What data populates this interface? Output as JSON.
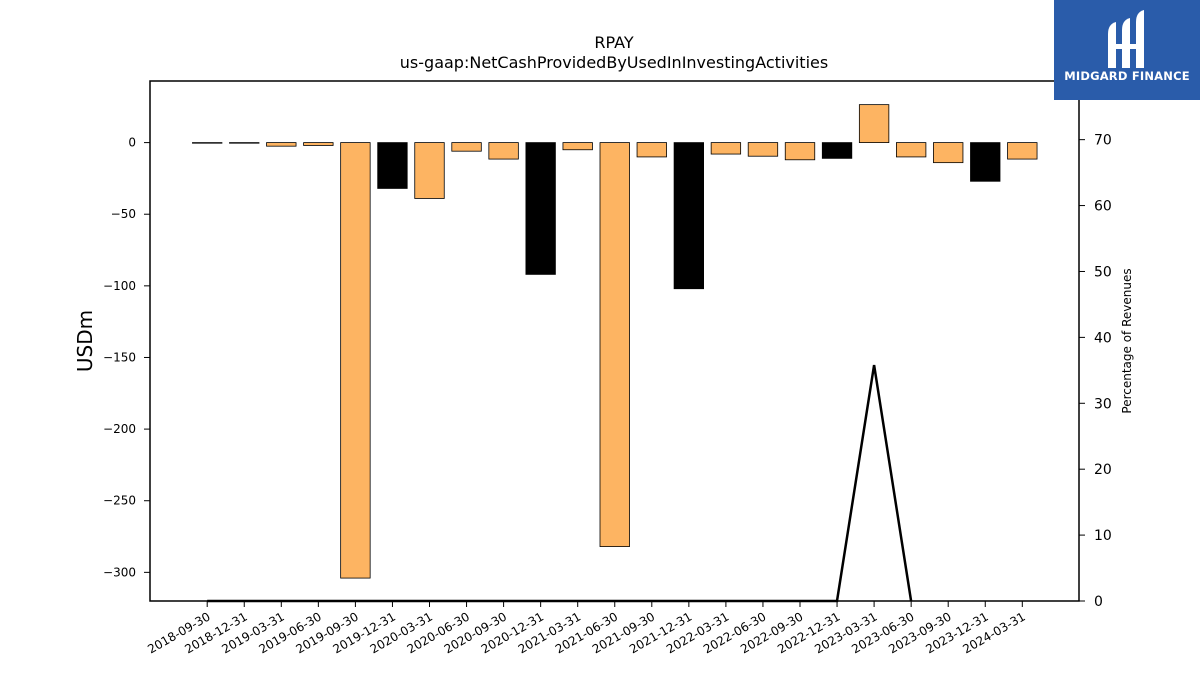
{
  "chart_data": {
    "type": "bar",
    "title": "RPAY",
    "subtitle": "us-gaap:NetCashProvidedByUsedInInvestingActivities",
    "ylabel": "USDm",
    "ylabel_right": "Percentage of Revenues",
    "ylim": [
      -320,
      43
    ],
    "ylim_right": [
      0,
      78.9
    ],
    "yticks": [
      0,
      -50,
      -100,
      -150,
      -200,
      -250,
      -300
    ],
    "yticks_right": [
      0,
      10,
      20,
      30,
      40,
      50,
      60,
      70
    ],
    "categories": [
      "2018-09-30",
      "2018-12-31",
      "2019-03-31",
      "2019-06-30",
      "2019-09-30",
      "2019-12-31",
      "2020-03-31",
      "2020-06-30",
      "2020-09-30",
      "2020-12-31",
      "2021-03-31",
      "2021-06-30",
      "2021-09-30",
      "2021-12-31",
      "2022-03-31",
      "2022-06-30",
      "2022-09-30",
      "2022-12-31",
      "2023-03-31",
      "2023-06-30",
      "2023-09-30",
      "2023-12-31",
      "2024-03-31"
    ],
    "values": [
      -0.3,
      -0.3,
      -2.5,
      -2,
      -304,
      -32,
      -39,
      -6,
      -11.5,
      -92,
      -5,
      -282,
      -10,
      -102,
      -8,
      -9.5,
      -12,
      -11,
      26.5,
      -10,
      -14,
      -27,
      -11.5
    ],
    "bar_colors": [
      "#fdb462",
      "#fdb462",
      "#fdb462",
      "#fdb462",
      "#fdb462",
      "#000000",
      "#fdb462",
      "#fdb462",
      "#fdb462",
      "#000000",
      "#fdb462",
      "#fdb462",
      "#fdb462",
      "#000000",
      "#fdb462",
      "#fdb462",
      "#fdb462",
      "#000000",
      "#fdb462",
      "#fdb462",
      "#fdb462",
      "#000000",
      "#fdb462"
    ],
    "line_series": {
      "x": [
        "2018-09-30",
        "2022-12-31",
        "2023-03-31",
        "2023-06-30"
      ],
      "values": [
        0,
        0,
        35.8,
        0
      ]
    }
  },
  "logo": {
    "text": "MIDGARD FINANCE"
  }
}
